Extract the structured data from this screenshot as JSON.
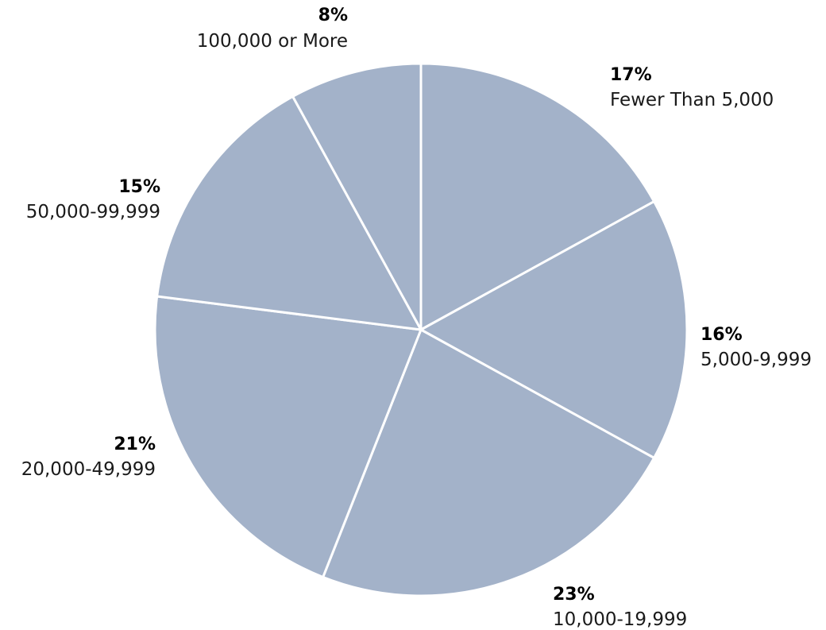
{
  "chart_data": {
    "type": "pie",
    "start_angle_deg": 0,
    "direction": "clockwise",
    "colors": {
      "slice_fill": "#a3b2c9",
      "slice_stroke": "#ffffff"
    },
    "slices": [
      {
        "label": "Fewer Than 5,000",
        "value": 17,
        "value_label": "17%"
      },
      {
        "label": "5,000-9,999",
        "value": 16,
        "value_label": "16%"
      },
      {
        "label": "10,000-19,999",
        "value": 23,
        "value_label": "23%"
      },
      {
        "label": "20,000-49,999",
        "value": 21,
        "value_label": "21%"
      },
      {
        "label": "50,000-99,999",
        "value": 15,
        "value_label": "15%"
      },
      {
        "label": "100,000 or More",
        "value": 8,
        "value_label": "8%"
      }
    ]
  }
}
